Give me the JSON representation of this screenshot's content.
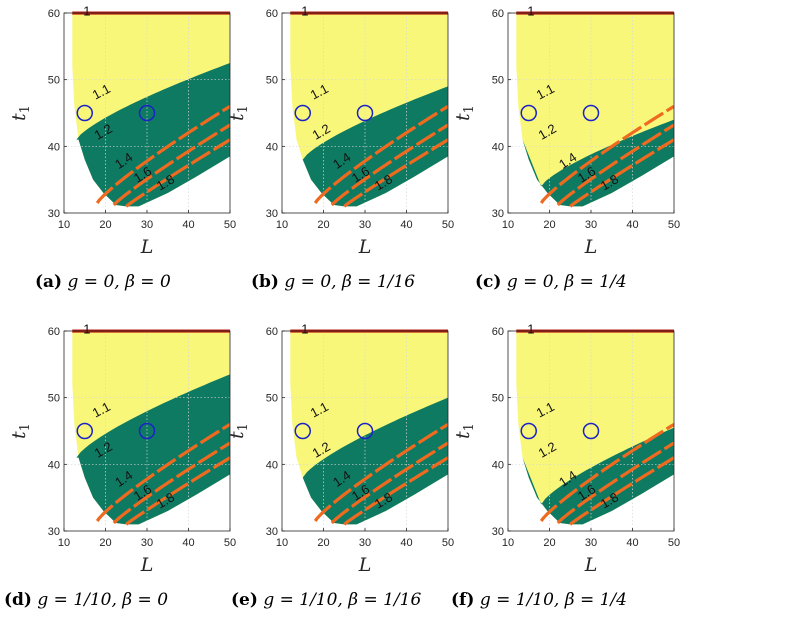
{
  "chart_data": [
    {
      "panel": "(a)",
      "caption": "g = 0, β = 0",
      "type": "contour",
      "xlabel": "L",
      "ylabel": "t1",
      "xlim": [
        10,
        50
      ],
      "ylim": [
        30,
        60
      ],
      "xticks": [
        10,
        20,
        30,
        40,
        50
      ],
      "yticks": [
        30,
        40,
        50,
        60
      ],
      "contour_levels": [
        "1",
        "1.1",
        "1.2",
        "1.4",
        "1.6",
        "1.8"
      ],
      "markers": [
        {
          "x": 15,
          "y": 45
        },
        {
          "x": 30,
          "y": 45
        }
      ],
      "green_region_top_at_L50": 52.5,
      "colors": {
        "feasible": "#f8f77a",
        "region": "#0f7a62",
        "contour": "#e8391a"
      }
    },
    {
      "panel": "(b)",
      "caption": "g = 0, β = 1/16",
      "type": "contour",
      "xlabel": "L",
      "ylabel": "t1",
      "xlim": [
        10,
        50
      ],
      "ylim": [
        30,
        60
      ],
      "xticks": [
        10,
        20,
        30,
        40,
        50
      ],
      "yticks": [
        30,
        40,
        50,
        60
      ],
      "contour_levels": [
        "1",
        "1.1",
        "1.2",
        "1.4",
        "1.6",
        "1.8"
      ],
      "markers": [
        {
          "x": 15,
          "y": 45
        },
        {
          "x": 30,
          "y": 45
        }
      ],
      "green_region_top_at_L50": 49,
      "colors": {
        "feasible": "#f8f77a",
        "region": "#0f7a62",
        "contour": "#e8391a"
      }
    },
    {
      "panel": "(c)",
      "caption": "g = 0, β = 1/4",
      "type": "contour",
      "xlabel": "L",
      "ylabel": "t1",
      "xlim": [
        10,
        50
      ],
      "ylim": [
        30,
        60
      ],
      "xticks": [
        10,
        20,
        30,
        40,
        50
      ],
      "yticks": [
        30,
        40,
        50,
        60
      ],
      "contour_levels": [
        "1",
        "1.1",
        "1.2",
        "1.4",
        "1.6",
        "1.8"
      ],
      "markers": [
        {
          "x": 15,
          "y": 45
        },
        {
          "x": 30,
          "y": 45
        }
      ],
      "green_region_top_at_L50": 44,
      "colors": {
        "feasible": "#f8f77a",
        "region": "#0f7a62",
        "contour": "#e8391a"
      }
    },
    {
      "panel": "(d)",
      "caption": "g = 1/10, β = 0",
      "type": "contour",
      "xlabel": "L",
      "ylabel": "t1",
      "xlim": [
        10,
        50
      ],
      "ylim": [
        30,
        60
      ],
      "xticks": [
        10,
        20,
        30,
        40,
        50
      ],
      "yticks": [
        30,
        40,
        50,
        60
      ],
      "contour_levels": [
        "1",
        "1.1",
        "1.2",
        "1.4",
        "1.6",
        "1.8"
      ],
      "markers": [
        {
          "x": 15,
          "y": 45
        },
        {
          "x": 30,
          "y": 45
        }
      ],
      "green_region_top_at_L50": 53.5,
      "colors": {
        "feasible": "#f8f77a",
        "region": "#0f7a62",
        "contour": "#e8391a"
      }
    },
    {
      "panel": "(e)",
      "caption": "g = 1/10, β = 1/16",
      "type": "contour",
      "xlabel": "L",
      "ylabel": "t1",
      "xlim": [
        10,
        50
      ],
      "ylim": [
        30,
        60
      ],
      "xticks": [
        10,
        20,
        30,
        40,
        50
      ],
      "yticks": [
        30,
        40,
        50,
        60
      ],
      "contour_levels": [
        "1",
        "1.1",
        "1.2",
        "1.4",
        "1.6",
        "1.8"
      ],
      "markers": [
        {
          "x": 15,
          "y": 45
        },
        {
          "x": 30,
          "y": 45
        }
      ],
      "green_region_top_at_L50": 50,
      "colors": {
        "feasible": "#f8f77a",
        "region": "#0f7a62",
        "contour": "#e8391a"
      }
    },
    {
      "panel": "(f)",
      "caption": "g = 1/10, β = 1/4",
      "type": "contour",
      "xlabel": "L",
      "ylabel": "t1",
      "xlim": [
        10,
        50
      ],
      "ylim": [
        30,
        60
      ],
      "xticks": [
        10,
        20,
        30,
        40,
        50
      ],
      "yticks": [
        30,
        40,
        50,
        60
      ],
      "contour_levels": [
        "1",
        "1.1",
        "1.2",
        "1.4",
        "1.6",
        "1.8"
      ],
      "markers": [
        {
          "x": 15,
          "y": 45
        },
        {
          "x": 30,
          "y": 45
        }
      ],
      "green_region_top_at_L50": 45.5,
      "colors": {
        "feasible": "#f8f77a",
        "region": "#0f7a62",
        "contour": "#e8391a"
      }
    }
  ]
}
